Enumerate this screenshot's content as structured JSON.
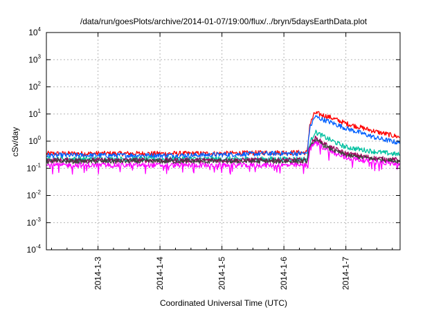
{
  "chart_data": {
    "type": "line",
    "title": "/data/run/goesPlots/archive/2014-01-07/19:00/flux/../bryn/5daysEarthData.plot",
    "xlabel": "Coordinated Universal Time (UTC)",
    "ylabel": "cSv/day",
    "yscale": "log",
    "ylim_exponents": [
      -4,
      4
    ],
    "ytick_base": "10",
    "ytick_exponents": [
      "-4",
      "-3",
      "-2",
      "-1",
      "0",
      "1",
      "2",
      "3",
      "4"
    ],
    "xlim_days": [
      "2014-01-02 04:00",
      "2014-01-07 21:00"
    ],
    "xtick_labels": [
      "2014-1-3",
      "2014-1-4",
      "2014-1-5",
      "2014-1-6",
      "2014-1-7"
    ],
    "grid": true,
    "legend": "none",
    "series": [
      {
        "color": "#ff0000",
        "points": [
          [
            "2014-01-02 04:00",
            0.35
          ],
          [
            "2014-01-04 12:00",
            0.35
          ],
          [
            "2014-01-05 00:00",
            0.35
          ],
          [
            "2014-01-05 20:00",
            0.38
          ],
          [
            "2014-01-06 09:00",
            0.38
          ],
          [
            "2014-01-06 10:00",
            4.0
          ],
          [
            "2014-01-06 12:00",
            11.0
          ],
          [
            "2014-01-06 18:00",
            7.5
          ],
          [
            "2014-01-07 00:00",
            4.5
          ],
          [
            "2014-01-07 12:00",
            2.2
          ],
          [
            "2014-01-07 21:00",
            1.4
          ]
        ]
      },
      {
        "color": "#0060ff",
        "points": [
          [
            "2014-01-02 04:00",
            0.3
          ],
          [
            "2014-01-04 12:00",
            0.3
          ],
          [
            "2014-01-05 00:00",
            0.32
          ],
          [
            "2014-01-05 20:00",
            0.35
          ],
          [
            "2014-01-06 09:00",
            0.35
          ],
          [
            "2014-01-06 10:00",
            3.0
          ],
          [
            "2014-01-06 12:00",
            8.0
          ],
          [
            "2014-01-06 18:00",
            5.0
          ],
          [
            "2014-01-07 00:00",
            3.0
          ],
          [
            "2014-01-07 12:00",
            1.3
          ],
          [
            "2014-01-07 21:00",
            0.85
          ]
        ]
      },
      {
        "color": "#00c0a0",
        "points": [
          [
            "2014-01-02 04:00",
            0.22
          ],
          [
            "2014-01-06 09:00",
            0.22
          ],
          [
            "2014-01-06 10:00",
            0.8
          ],
          [
            "2014-01-06 12:00",
            2.2
          ],
          [
            "2014-01-06 18:00",
            1.1
          ],
          [
            "2014-01-07 00:00",
            0.6
          ],
          [
            "2014-01-07 12:00",
            0.4
          ],
          [
            "2014-01-07 21:00",
            0.32
          ]
        ]
      },
      {
        "color": "#a00060",
        "points": [
          [
            "2014-01-02 04:00",
            0.2
          ],
          [
            "2014-01-06 09:00",
            0.2
          ],
          [
            "2014-01-06 10:00",
            0.6
          ],
          [
            "2014-01-06 12:00",
            1.3
          ],
          [
            "2014-01-06 18:00",
            0.6
          ],
          [
            "2014-01-07 00:00",
            0.35
          ],
          [
            "2014-01-07 12:00",
            0.23
          ],
          [
            "2014-01-07 21:00",
            0.2
          ]
        ]
      },
      {
        "color": "#404040",
        "points": [
          [
            "2014-01-02 04:00",
            0.18
          ],
          [
            "2014-01-06 09:00",
            0.18
          ],
          [
            "2014-01-06 10:00",
            0.55
          ],
          [
            "2014-01-06 12:00",
            1.1
          ],
          [
            "2014-01-06 18:00",
            0.5
          ],
          [
            "2014-01-07 00:00",
            0.3
          ],
          [
            "2014-01-07 12:00",
            0.21
          ],
          [
            "2014-01-07 21:00",
            0.18
          ]
        ]
      },
      {
        "color": "#ff00ff",
        "points": [
          [
            "2014-01-02 04:00",
            0.13
          ],
          [
            "2014-01-06 09:00",
            0.13
          ],
          [
            "2014-01-06 10:00",
            0.45
          ],
          [
            "2014-01-06 12:00",
            0.9
          ],
          [
            "2014-01-06 18:00",
            0.4
          ],
          [
            "2014-01-07 00:00",
            0.24
          ],
          [
            "2014-01-07 12:00",
            0.17
          ],
          [
            "2014-01-07 21:00",
            0.14
          ]
        ]
      }
    ]
  }
}
